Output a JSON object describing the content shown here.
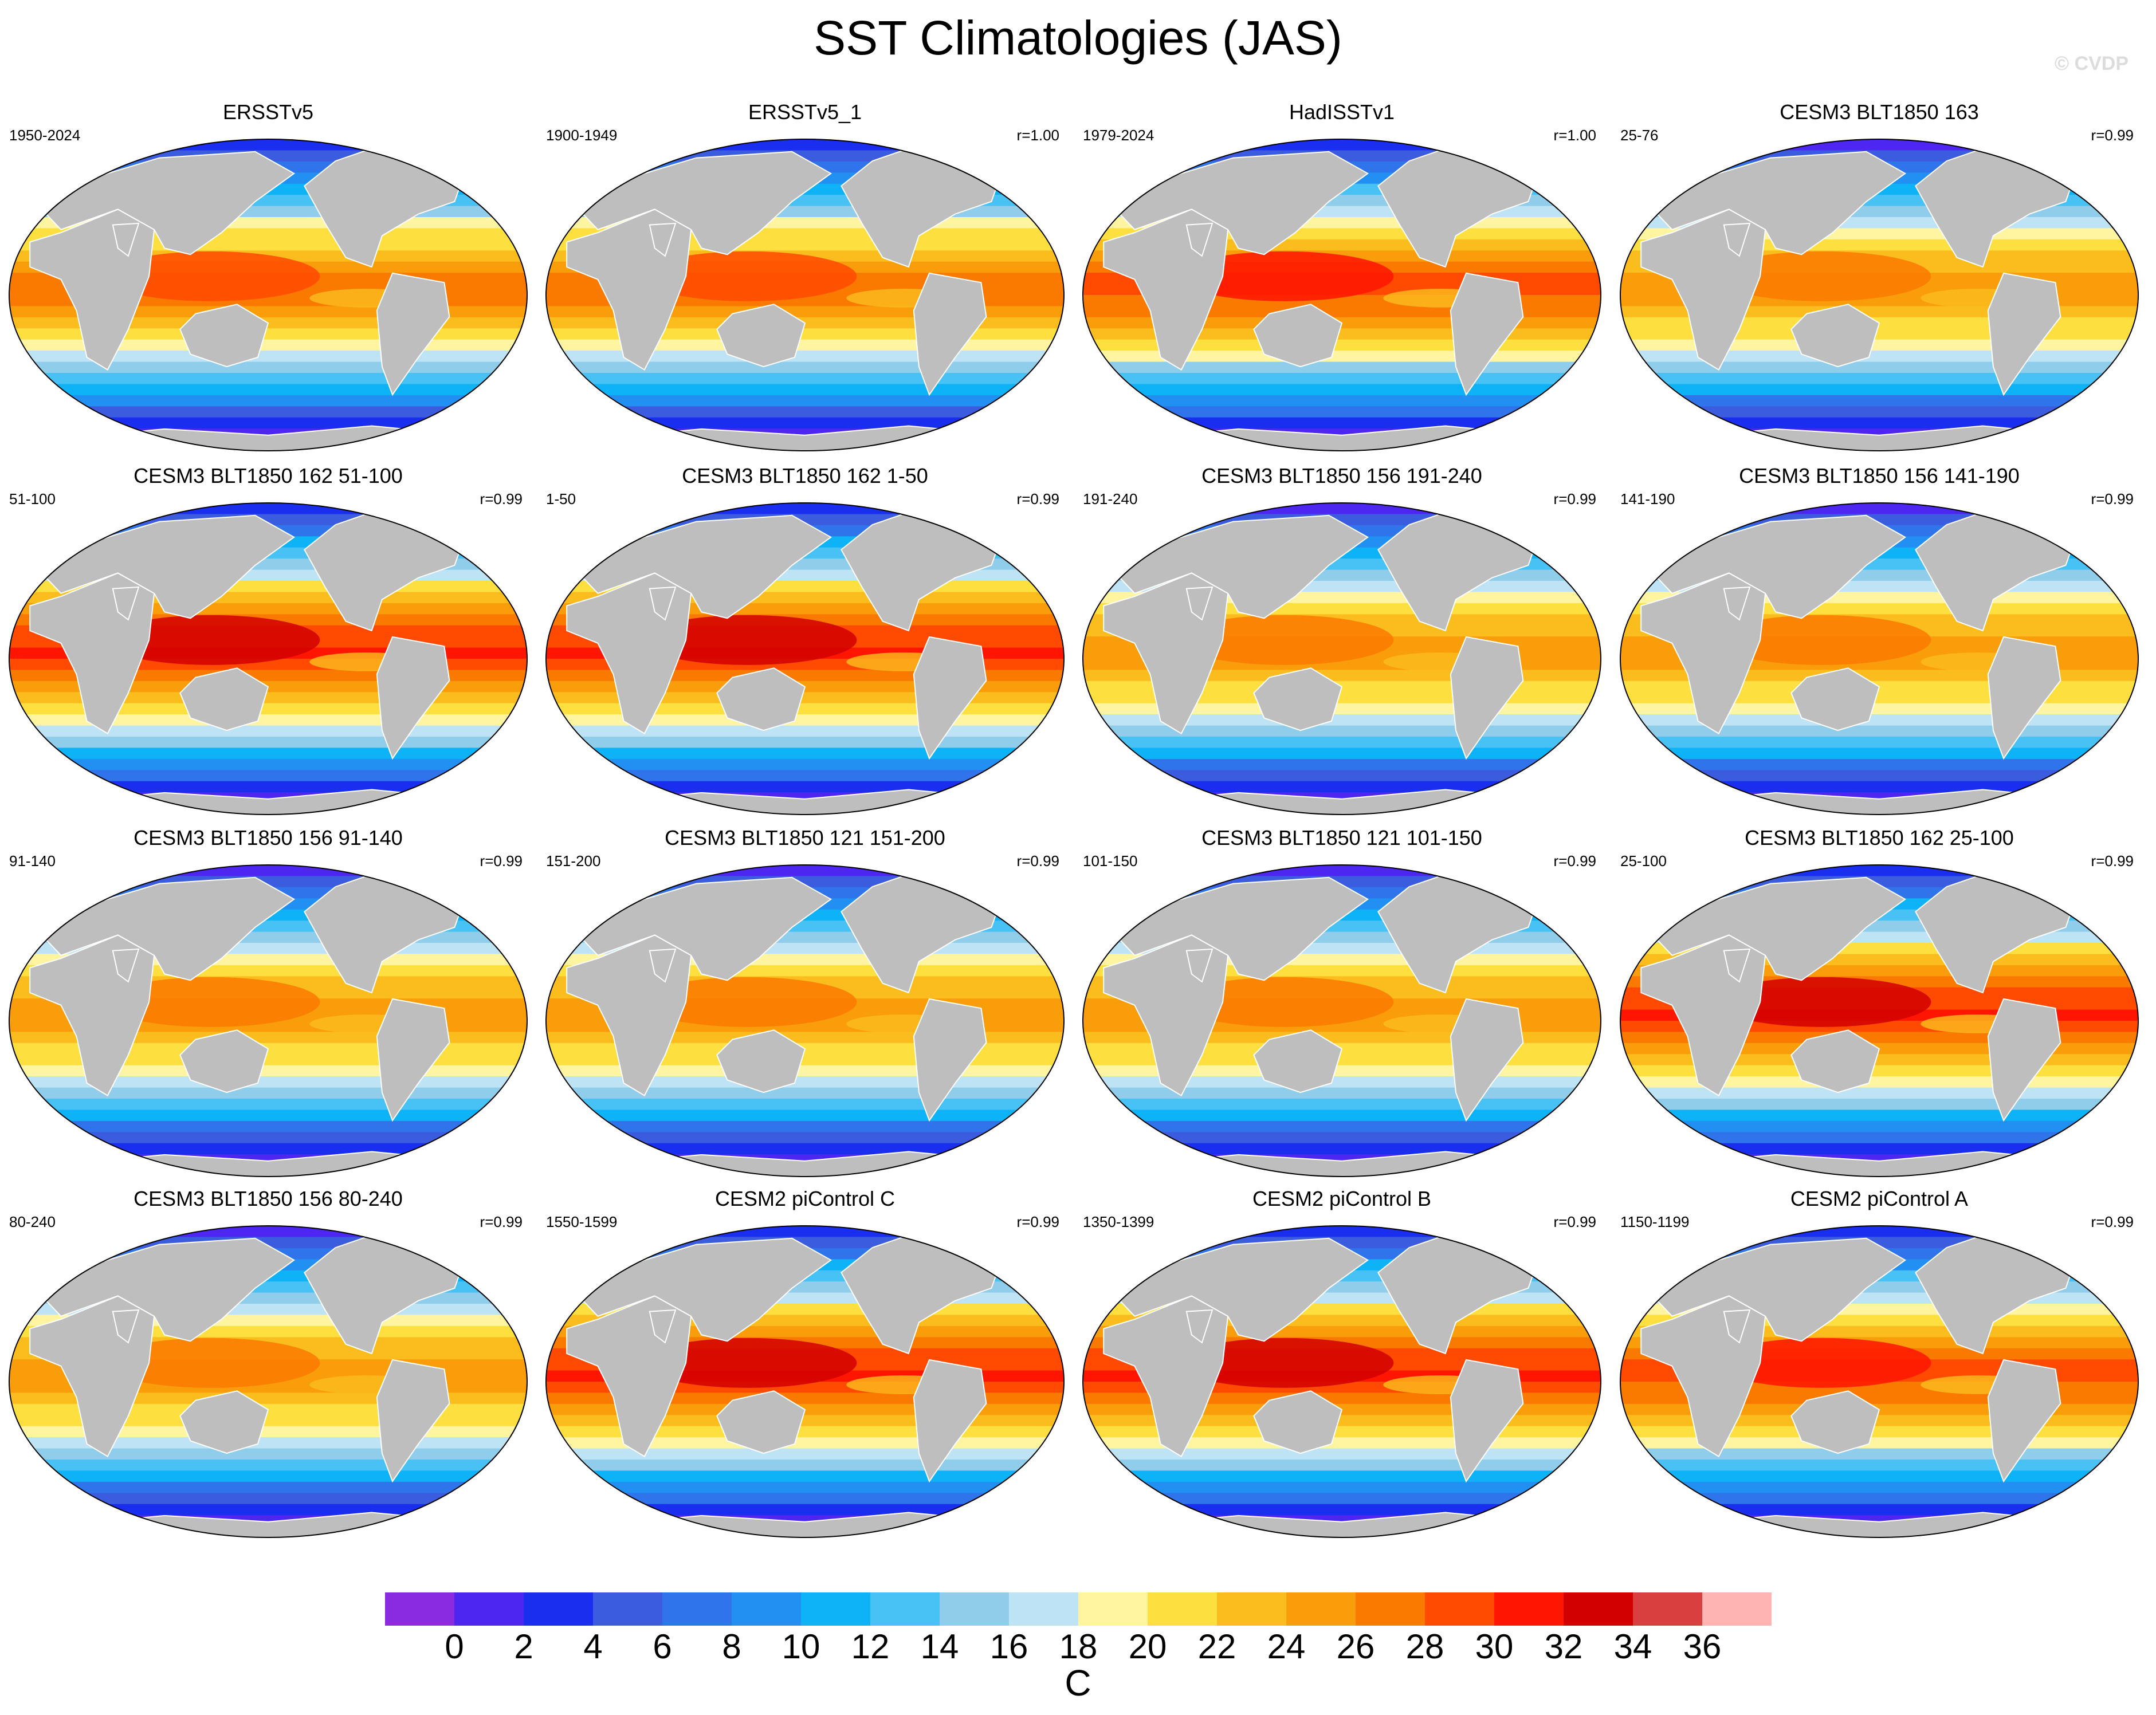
{
  "title": "SST Climatologies (JAS)",
  "watermark": "© CVDP",
  "colors": {
    "land": "#bebebe",
    "levels": [
      "#8a2be2",
      "#4d26f2",
      "#1a2ef0",
      "#3c5ce0",
      "#2f74ea",
      "#2290f2",
      "#0eb2f6",
      "#48c1f5",
      "#8fcdeb",
      "#bde3f5",
      "#fff5a0",
      "#fde040",
      "#fbbd1e",
      "#fa9d0a",
      "#fa7a00",
      "#ff4a00",
      "#ff1500",
      "#d20000",
      "#d84040",
      "#ffb4b4"
    ]
  },
  "colorbar": {
    "ticks": [
      "0",
      "2",
      "4",
      "6",
      "8",
      "10",
      "12",
      "14",
      "16",
      "18",
      "20",
      "22",
      "24",
      "26",
      "28",
      "30",
      "32",
      "34",
      "36"
    ],
    "units": "C"
  },
  "panels": [
    {
      "title": "ERSSTv5",
      "years": "1950-2024",
      "corr": "",
      "warm": 0.95
    },
    {
      "title": "ERSSTv5_1",
      "years": "1900-1949",
      "corr": "r=1.00",
      "warm": 0.95
    },
    {
      "title": "HadISSTv1",
      "years": "1979-2024",
      "corr": "r=1.00",
      "warm": 1.0
    },
    {
      "title": "CESM3 BLT1850 163",
      "years": "25-76",
      "corr": "r=0.99",
      "warm": 0.9
    },
    {
      "title": "CESM3 BLT1850 162 51-100",
      "years": "51-100",
      "corr": "r=0.99",
      "warm": 1.05
    },
    {
      "title": "CESM3 BLT1850 162 1-50",
      "years": "1-50",
      "corr": "r=0.99",
      "warm": 1.05
    },
    {
      "title": "CESM3 BLT1850 156 191-240",
      "years": "191-240",
      "corr": "r=0.99",
      "warm": 0.9
    },
    {
      "title": "CESM3 BLT1850 156 141-190",
      "years": "141-190",
      "corr": "r=0.99",
      "warm": 0.9
    },
    {
      "title": "CESM3 BLT1850 156 91-140",
      "years": "91-140",
      "corr": "r=0.99",
      "warm": 0.9
    },
    {
      "title": "CESM3 BLT1850 121 151-200",
      "years": "151-200",
      "corr": "r=0.99",
      "warm": 0.9
    },
    {
      "title": "CESM3 BLT1850 121 101-150",
      "years": "101-150",
      "corr": "r=0.99",
      "warm": 0.9
    },
    {
      "title": "CESM3 BLT1850 162 25-100",
      "years": "25-100",
      "corr": "r=0.99",
      "warm": 1.05
    },
    {
      "title": "CESM3 BLT1850 156 80-240",
      "years": "80-240",
      "corr": "r=0.99",
      "warm": 0.9
    },
    {
      "title": "CESM2 piControl C",
      "years": "1550-1599",
      "corr": "r=0.99",
      "warm": 1.05
    },
    {
      "title": "CESM2 piControl B",
      "years": "1350-1399",
      "corr": "r=0.99",
      "warm": 1.05
    },
    {
      "title": "CESM2 piControl A",
      "years": "1150-1199",
      "corr": "r=0.99",
      "warm": 1.0
    }
  ]
}
